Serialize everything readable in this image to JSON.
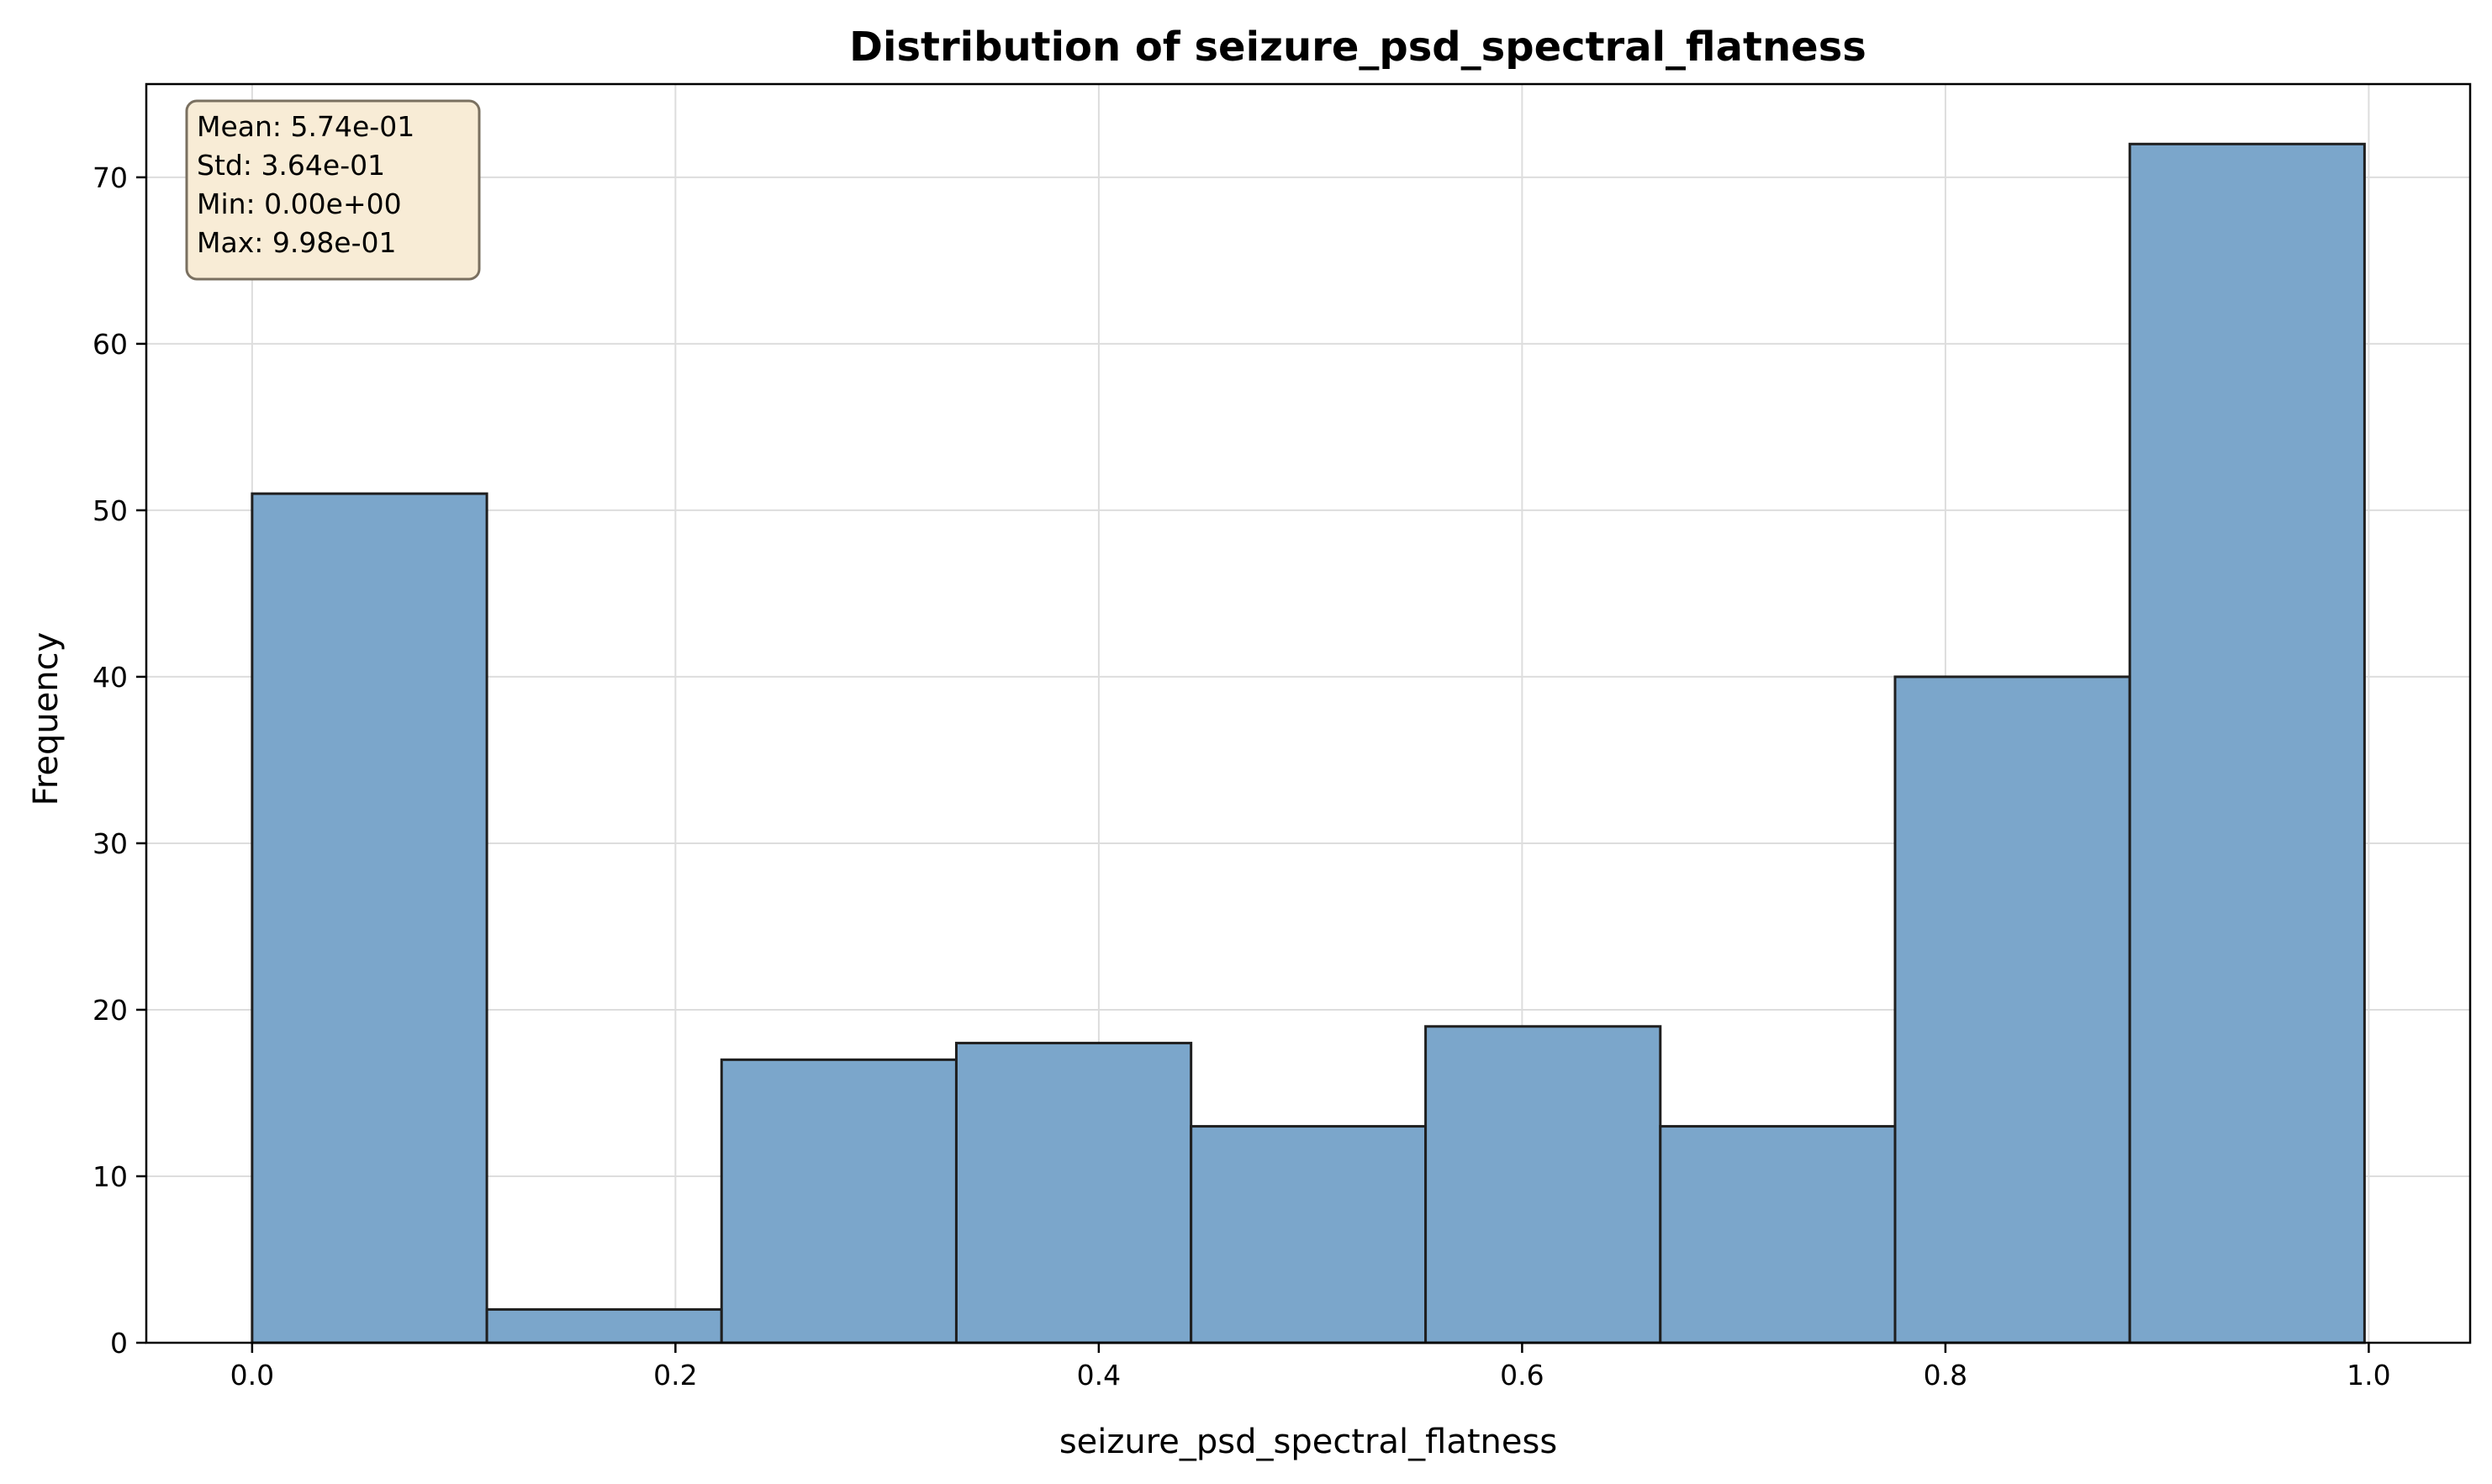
{
  "chart_data": {
    "type": "bar",
    "title": "Distribution of seizure_psd_spectral_flatness",
    "xlabel": "seizure_psd_spectral_flatness",
    "ylabel": "Frequency",
    "xlim": [
      -0.05,
      1.0479
    ],
    "ylim": [
      0,
      75.6
    ],
    "xticks": [
      0.0,
      0.2,
      0.4,
      0.6,
      0.8,
      1.0
    ],
    "xtick_labels": [
      "0.0",
      "0.2",
      "0.4",
      "0.6",
      "0.8",
      "1.0"
    ],
    "yticks": [
      0,
      10,
      20,
      30,
      40,
      50,
      60,
      70
    ],
    "ytick_labels": [
      "0",
      "10",
      "20",
      "30",
      "40",
      "50",
      "60",
      "70"
    ],
    "bin_edges": [
      0.0,
      0.1109,
      0.2218,
      0.3327,
      0.4436,
      0.5544,
      0.6653,
      0.7762,
      0.8871,
      0.998
    ],
    "values": [
      51,
      2,
      17,
      18,
      13,
      19,
      13,
      40,
      72
    ],
    "grid": true,
    "bar_color": "#7ba6cb",
    "edge_color": "#1f1f1f",
    "stats_box": {
      "lines": [
        "Mean: 5.74e-01",
        "Std: 3.64e-01",
        "Min: 0.00e+00",
        "Max: 9.98e-01"
      ],
      "placement": "top-left",
      "background": "#f8ecd6"
    }
  }
}
